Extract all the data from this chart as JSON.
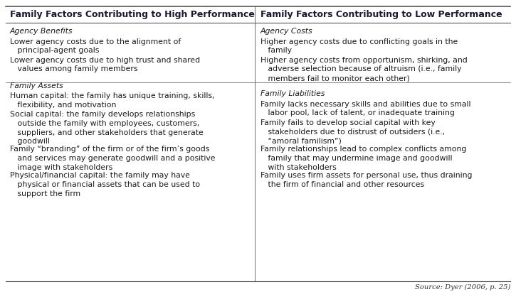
{
  "header_left": "Family Factors Contributing to High Performance",
  "header_right": "Family Factors Contributing to Low Performance",
  "source": "Source: Dyer (2006, p. 25)",
  "bg_color": "#ffffff",
  "border_color": "#555555",
  "header_font_size": 9.0,
  "body_font_size": 7.8,
  "source_font_size": 7.2,
  "left_sections": [
    {
      "heading": "Agency Benefits",
      "items": [
        "Lower agency costs due to the alignment of\n   principal-agent goals",
        "Lower agency costs due to high trust and shared\n   values among family members"
      ]
    },
    {
      "heading": "Family Assets",
      "items": [
        "Human capital: the family has unique training, skills,\n   flexibility, and motivation",
        "Social capital: the family develops relationships\n   outside the family with employees, customers,\n   suppliers, and other stakeholders that generate\n   goodwill",
        "Family “branding” of the firm or of the firm’s goods\n   and services may generate goodwill and a positive\n   image with stakeholders",
        "Physical/financial capital: the family may have\n   physical or financial assets that can be used to\n   support the firm"
      ]
    }
  ],
  "right_sections": [
    {
      "heading": "Agency Costs",
      "items": [
        "Higher agency costs due to conflicting goals in the\n   family",
        "Higher agency costs from opportunism, shirking, and\n   adverse selection because of altruism (i.e., family\n   members fail to monitor each other)"
      ]
    },
    {
      "heading": "Family Liabilities",
      "items": [
        "Family lacks necessary skills and abilities due to small\n   labor pool, lack of talent, or inadequate training",
        "Family fails to develop social capital with key\n   stakeholders due to distrust of outsiders (i.e.,\n   “amoral familism”)",
        "Family relationships lead to complex conflicts among\n   family that may undermine image and goodwill\n   with stakeholders",
        "Family uses firm assets for personal use, thus draining\n   the firm of financial and other resources"
      ]
    }
  ]
}
